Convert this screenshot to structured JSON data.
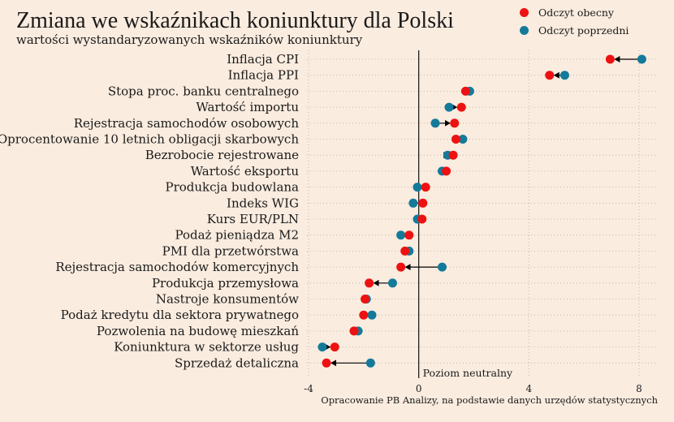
{
  "title": "Zmiana we wskaźnikach koniunktury dla Polski",
  "subtitle": "wartości wystandaryzowanych wskaźników koniunktury",
  "caption": "Opracowanie PB Analizy, na podstawie danych urzędów statystycznych",
  "colors": {
    "current": "#ee1111",
    "previous": "#147a9a",
    "background": "#faecdf"
  },
  "chart_data": {
    "type": "scatter",
    "title": "Zmiana we wskaźnikach koniunktury dla Polski",
    "xlim": [
      -4,
      9
    ],
    "xticks": [
      -4,
      0,
      4,
      8
    ],
    "reference_line": {
      "x": 0,
      "label": "Poziom neutralny"
    },
    "legend_position": "top-right",
    "series": [
      {
        "name": "Odczyt obecny",
        "key": "current"
      },
      {
        "name": "Odczyt poprzedni",
        "key": "previous"
      }
    ],
    "categories": [
      "Inflacja CPI",
      "Inflacja PPI",
      "Stopa proc. banku centralnego",
      "Wartość importu",
      "Rejestracja samochodów osobowych",
      "Oprocentowanie 10 letnich obligacji skarbowych",
      "Bezrobocie rejestrowane",
      "Wartość eksportu",
      "Produkcja budowlana",
      "Indeks WIG",
      "Kurs EUR/PLN",
      "Podaż pieniądza M2",
      "PMI dla przetwórstwa",
      "Rejestracja samochodów komercyjnych",
      "Produkcja przemysłowa",
      "Nastroje konsumentów",
      "Podaż kredytu dla sektora prywatnego",
      "Pozwolenia na budowę mieszkań",
      "Koniunktura w sektorze usług",
      "Sprzedaż detaliczna"
    ],
    "current": [
      6.95,
      4.75,
      1.7,
      1.55,
      1.3,
      1.35,
      1.25,
      1.0,
      0.25,
      0.15,
      0.12,
      -0.35,
      -0.5,
      -0.65,
      -1.8,
      -1.95,
      -2.0,
      -2.35,
      -3.05,
      -3.35
    ],
    "previous": [
      8.1,
      5.3,
      1.85,
      1.1,
      0.6,
      1.6,
      1.05,
      0.85,
      -0.05,
      -0.2,
      -0.05,
      -0.65,
      -0.35,
      0.85,
      -0.95,
      -1.9,
      -1.7,
      -2.2,
      -3.5,
      -1.75
    ]
  }
}
